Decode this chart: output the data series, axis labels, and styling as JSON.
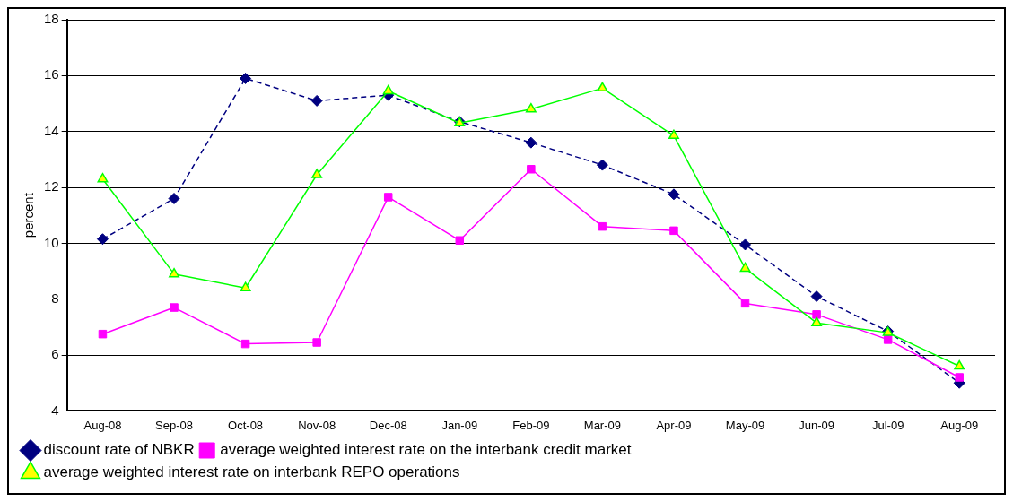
{
  "chart_data": {
    "type": "line",
    "ylabel": "percent",
    "categories": [
      "Aug-08",
      "Sep-08",
      "Oct-08",
      "Nov-08",
      "Dec-08",
      "Jan-09",
      "Feb-09",
      "Mar-09",
      "Apr-09",
      "May-09",
      "Jun-09",
      "Jul-09",
      "Aug-09"
    ],
    "series": [
      {
        "name": "discount rate of NBKR",
        "color": "#000080",
        "marker": "diamond",
        "line_style": "dashed",
        "values": [
          10.15,
          11.6,
          15.9,
          15.1,
          15.3,
          14.35,
          13.6,
          12.8,
          11.75,
          9.95,
          8.1,
          6.85,
          5.0
        ]
      },
      {
        "name": "average weighted interest rate on the interbank credit market",
        "color": "#ff00ff",
        "marker": "square",
        "line_style": "solid",
        "values": [
          6.75,
          7.7,
          6.4,
          6.45,
          11.65,
          10.1,
          12.65,
          10.6,
          10.45,
          7.85,
          7.45,
          6.55,
          5.2
        ]
      },
      {
        "name": "average weighted interest rate on interbank REPO operations",
        "color": "#00ff00",
        "marker": "triangle",
        "line_style": "solid",
        "values": [
          12.3,
          8.9,
          8.4,
          12.45,
          15.45,
          14.3,
          14.8,
          15.55,
          13.85,
          9.1,
          7.15,
          6.8,
          5.6
        ]
      }
    ],
    "ylim": [
      4,
      18
    ],
    "yticks": [
      4,
      6,
      8,
      10,
      12,
      14,
      16,
      18
    ],
    "grid": "y",
    "legend": "bottom left"
  }
}
